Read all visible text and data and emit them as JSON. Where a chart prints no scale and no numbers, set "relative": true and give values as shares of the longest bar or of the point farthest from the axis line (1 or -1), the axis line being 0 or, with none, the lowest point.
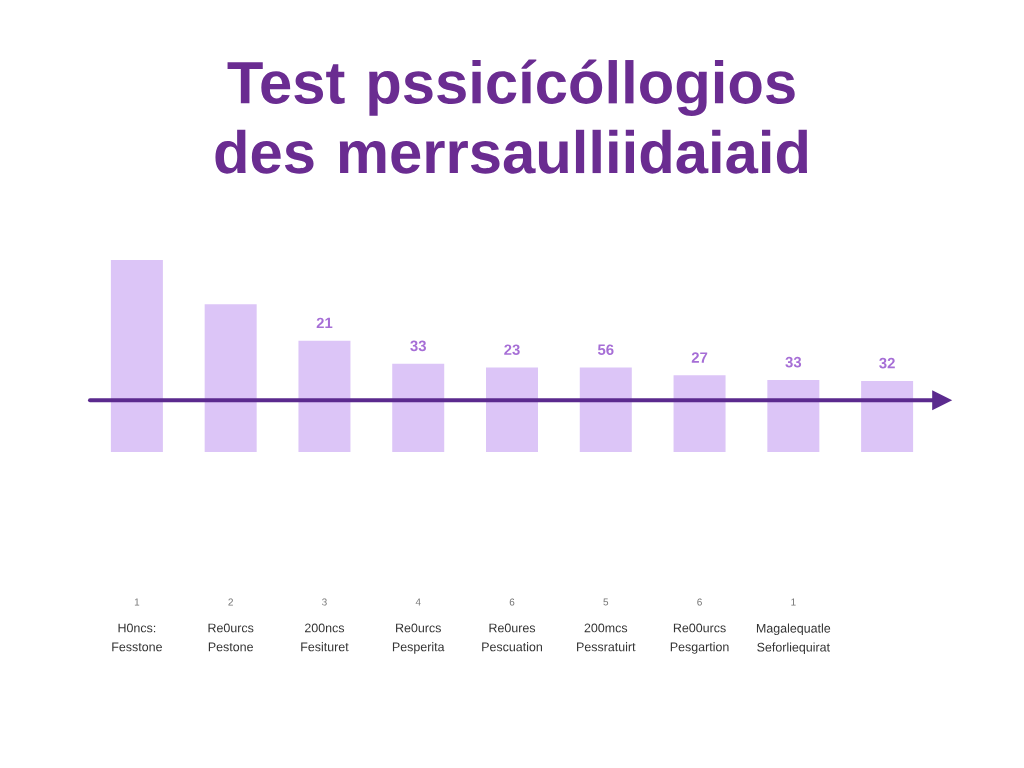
{
  "chart_data": {
    "type": "bar",
    "title": "Test pssicícóllogios des merrsaulliidaiaid",
    "relative": true,
    "color": "#dcc5f7",
    "categories": [
      "H0ncs: Fesstone",
      "Re0urcs Pestone",
      "200ncs Fesituret",
      "Re0urcs Pesperita",
      "Re0ures Pescuation",
      "200mcs Pessratuirt",
      "Re00urcs Pesgartion",
      "Magalequatle Seforliequirat",
      null
    ],
    "values": [
      1,
      0.77,
      0.58,
      0.46,
      0.44,
      0.44,
      0.4,
      0.375,
      0.37
    ],
    "annotations": [
      "1",
      "2",
      "3",
      "4",
      "6",
      "5",
      "6",
      "1",
      "21",
      "33",
      "23",
      "56",
      "27",
      "33",
      "32"
    ],
    "ref_lines": [
      {
        "axis": "y",
        "value": 0.27,
        "color": "#5b2a8e"
      }
    ]
  }
}
